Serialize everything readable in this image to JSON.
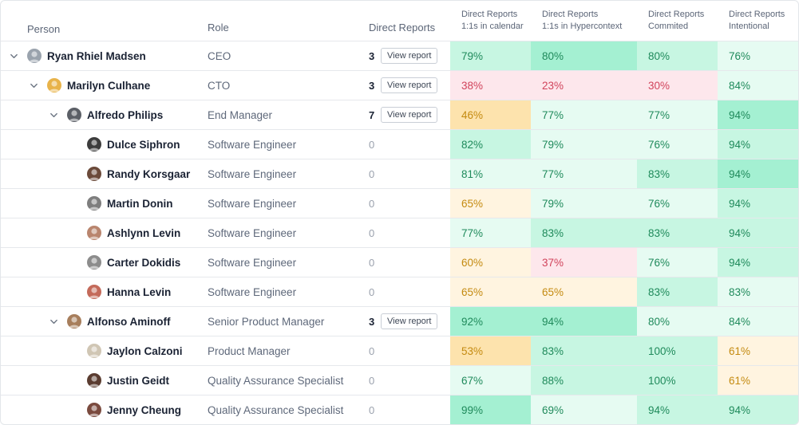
{
  "header": {
    "person": "Person",
    "role": "Role",
    "direct_reports": "Direct Reports",
    "metric1": "Direct Reports\n1:1s in calendar",
    "metric2": "Direct Reports\n1:1s in Hypercontext",
    "metric3": "Direct Reports\nCommited",
    "metric4": "Direct Reports\nIntentional"
  },
  "view_report_label": "View report",
  "rows": [
    {
      "name": "Ryan Rhiel Madsen",
      "role": "CEO",
      "reports": "3",
      "m1": "79%",
      "m2": "80%",
      "m3": "80%",
      "m4": "76%"
    },
    {
      "name": "Marilyn Culhane",
      "role": "CTO",
      "reports": "3",
      "m1": "38%",
      "m2": "23%",
      "m3": "30%",
      "m4": "84%"
    },
    {
      "name": "Alfredo Philips",
      "role": "End Manager",
      "reports": "7",
      "m1": "46%",
      "m2": "77%",
      "m3": "77%",
      "m4": "94%"
    },
    {
      "name": "Dulce Siphron",
      "role": "Software Engineer",
      "reports": "0",
      "m1": "82%",
      "m2": "79%",
      "m3": "76%",
      "m4": "94%"
    },
    {
      "name": "Randy Korsgaar",
      "role": "Software Engineer",
      "reports": "0",
      "m1": "81%",
      "m2": "77%",
      "m3": "83%",
      "m4": "94%"
    },
    {
      "name": "Martin Donin",
      "role": "Software Engineer",
      "reports": "0",
      "m1": "65%",
      "m2": "79%",
      "m3": "76%",
      "m4": "94%"
    },
    {
      "name": "Ashlynn Levin",
      "role": "Software Engineer",
      "reports": "0",
      "m1": "77%",
      "m2": "83%",
      "m3": "83%",
      "m4": "94%"
    },
    {
      "name": "Carter Dokidis",
      "role": "Software Engineer",
      "reports": "0",
      "m1": "60%",
      "m2": "37%",
      "m3": "76%",
      "m4": "94%"
    },
    {
      "name": "Hanna Levin",
      "role": "Software Engineer",
      "reports": "0",
      "m1": "65%",
      "m2": "65%",
      "m3": "83%",
      "m4": "83%"
    },
    {
      "name": "Alfonso Aminoff",
      "role": "Senior Product Manager",
      "reports": "3",
      "m1": "92%",
      "m2": "94%",
      "m3": "80%",
      "m4": "84%"
    },
    {
      "name": "Jaylon Calzoni",
      "role": "Product Manager",
      "reports": "0",
      "m1": "53%",
      "m2": "83%",
      "m3": "100%",
      "m4": "61%"
    },
    {
      "name": "Justin Geidt",
      "role": "Quality Assurance Specialist",
      "reports": "0",
      "m1": "67%",
      "m2": "88%",
      "m3": "100%",
      "m4": "61%"
    },
    {
      "name": "Jenny Cheung",
      "role": "Quality Assurance Specialist",
      "reports": "0",
      "m1": "99%",
      "m2": "69%",
      "m3": "94%",
      "m4": "94%"
    }
  ],
  "colors": {
    "green_strong": "#a4f0d2",
    "green_medium": "#c7f6e2",
    "green_light": "#e6fbf2",
    "yellow_strong": "#fde3ad",
    "yellow_light": "#fff4e0",
    "red_light": "#fde7ec",
    "green_text": "#1f8a5b",
    "yellow_text": "#c48a10",
    "red_text": "#d1435b"
  },
  "icons": {
    "expand": "chevron-down-icon",
    "avatar": "avatar"
  }
}
